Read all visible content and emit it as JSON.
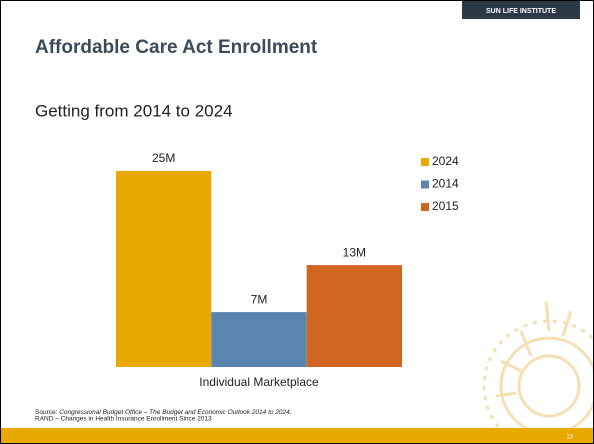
{
  "slide": {
    "logo": "SUN LIFE INSTITUTE",
    "title": "Affordable Care Act Enrollment",
    "subtitle": "Getting from 2014 to 2024",
    "source": {
      "prefix": "Source: ",
      "citation": "Congressional Budget Office – The Budget and Economic Outlook 2014 to 2024,",
      "line2": "RAND – Changes in Health Insurance Enrollment Since 2013"
    },
    "page_number": "13"
  },
  "chart_data": {
    "type": "bar",
    "categories": [
      "Individual Marketplace"
    ],
    "series": [
      {
        "name": "2024",
        "color": "#e8a900",
        "values": [
          25
        ],
        "value_labels": [
          "25M"
        ]
      },
      {
        "name": "2014",
        "color": "#5b84ae",
        "values": [
          7
        ],
        "value_labels": [
          "7M"
        ]
      },
      {
        "name": "2015",
        "color": "#d0661f",
        "values": [
          13
        ],
        "value_labels": [
          "13M"
        ]
      }
    ],
    "legend": "right"
  }
}
